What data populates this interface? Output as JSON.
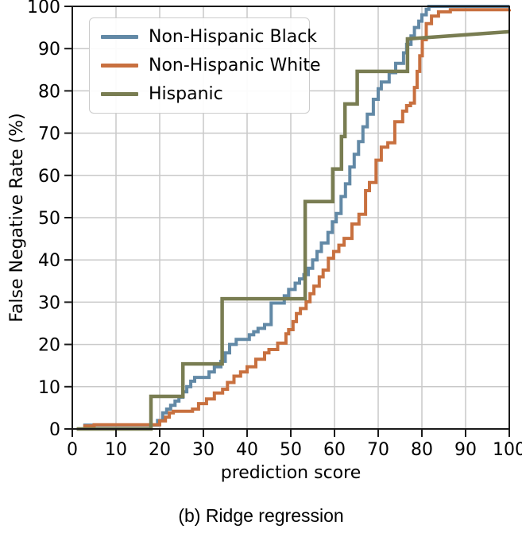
{
  "figure": {
    "caption": "(b) Ridge regression"
  },
  "colors": {
    "grid": "#c9c9c9",
    "spine": "#1a1a1a",
    "background": "#ffffff"
  },
  "chart_data": {
    "type": "line",
    "title": "",
    "xlabel": "prediction score",
    "ylabel": "False Negative Rate (%)",
    "xlim": [
      0,
      100
    ],
    "ylim": [
      0,
      100
    ],
    "xticks": [
      0,
      10,
      20,
      30,
      40,
      50,
      60,
      70,
      80,
      90,
      100
    ],
    "yticks": [
      0,
      10,
      20,
      30,
      40,
      50,
      60,
      70,
      80,
      90,
      100
    ],
    "grid": true,
    "legend_position": "upper left",
    "series": [
      {
        "name": "Non-Hispanic Black",
        "slug": "non-hispanic-black",
        "color": "#6289a6",
        "width": 4,
        "interp": "step",
        "points": [
          [
            2.5,
            0.9
          ],
          [
            19.5,
            2
          ],
          [
            20.7,
            3.8
          ],
          [
            21.6,
            4.7
          ],
          [
            22.5,
            5.6
          ],
          [
            23.5,
            6.6
          ],
          [
            24.4,
            7.5
          ],
          [
            25.3,
            8.8
          ],
          [
            26.2,
            10
          ],
          [
            27.1,
            11.3
          ],
          [
            28,
            12.2
          ],
          [
            31.3,
            13.5
          ],
          [
            32.5,
            14.7
          ],
          [
            34,
            16
          ],
          [
            35,
            18
          ],
          [
            36,
            20
          ],
          [
            37.5,
            21.2
          ],
          [
            40.5,
            22.3
          ],
          [
            41.5,
            23
          ],
          [
            42.5,
            23.8
          ],
          [
            44,
            24.7
          ],
          [
            45.5,
            29.8
          ],
          [
            48.5,
            31.5
          ],
          [
            49.5,
            33
          ],
          [
            51,
            34.5
          ],
          [
            52,
            35.5
          ],
          [
            53,
            36.5
          ],
          [
            54,
            38
          ],
          [
            55,
            40
          ],
          [
            56,
            42
          ],
          [
            57,
            44
          ],
          [
            58.5,
            46.5
          ],
          [
            59.5,
            49
          ],
          [
            60.4,
            51
          ],
          [
            61.5,
            55
          ],
          [
            62.5,
            58
          ],
          [
            63.5,
            62
          ],
          [
            64.5,
            65
          ],
          [
            65.5,
            68
          ],
          [
            66.5,
            71.5
          ],
          [
            67.5,
            74.5
          ],
          [
            68.9,
            78
          ],
          [
            70,
            80.5
          ],
          [
            70.7,
            82.1
          ],
          [
            72.5,
            84.3
          ],
          [
            74,
            86.5
          ],
          [
            75.8,
            89
          ],
          [
            76.5,
            91
          ],
          [
            77.5,
            93
          ],
          [
            78.3,
            95
          ],
          [
            79.3,
            96.5
          ],
          [
            80,
            98
          ],
          [
            81,
            99.3
          ],
          [
            81.6,
            100
          ],
          [
            100,
            100
          ]
        ]
      },
      {
        "name": "Non-Hispanic White",
        "slug": "non-hispanic-white",
        "color": "#c8703f",
        "width": 4,
        "interp": "step",
        "points": [
          [
            2.5,
            0.7
          ],
          [
            5,
            1
          ],
          [
            20,
            1.9
          ],
          [
            21.3,
            2.8
          ],
          [
            22.2,
            3.8
          ],
          [
            23.1,
            4.2
          ],
          [
            27.5,
            4.7
          ],
          [
            28.9,
            6
          ],
          [
            30.7,
            7.1
          ],
          [
            32.5,
            8.5
          ],
          [
            34.4,
            9.4
          ],
          [
            35.5,
            11
          ],
          [
            37,
            12.5
          ],
          [
            38.5,
            13.5
          ],
          [
            40,
            14.7
          ],
          [
            42,
            16.5
          ],
          [
            44,
            18
          ],
          [
            45,
            18.8
          ],
          [
            47,
            20.3
          ],
          [
            48.9,
            22.5
          ],
          [
            49.5,
            23.5
          ],
          [
            50.5,
            25.4
          ],
          [
            51.3,
            27.3
          ],
          [
            52.2,
            28.5
          ],
          [
            53.5,
            30.1
          ],
          [
            54.4,
            32
          ],
          [
            55.3,
            33.8
          ],
          [
            56.5,
            36
          ],
          [
            57.4,
            37.6
          ],
          [
            58.6,
            40.4
          ],
          [
            59.8,
            42
          ],
          [
            61,
            43.5
          ],
          [
            62.2,
            45.1
          ],
          [
            64,
            48.5
          ],
          [
            65.6,
            50.8
          ],
          [
            67.1,
            56.4
          ],
          [
            68,
            58.3
          ],
          [
            69.5,
            63.6
          ],
          [
            70.7,
            66.7
          ],
          [
            72.2,
            67.7
          ],
          [
            73.8,
            72.7
          ],
          [
            75.6,
            75.2
          ],
          [
            76.5,
            76.5
          ],
          [
            77.4,
            77.1
          ],
          [
            78.3,
            80.8
          ],
          [
            78.9,
            84.6
          ],
          [
            79.5,
            88.3
          ],
          [
            80.1,
            92.1
          ],
          [
            81,
            95.9
          ],
          [
            82.2,
            97.7
          ],
          [
            83.8,
            98.7
          ],
          [
            86.5,
            99.2
          ],
          [
            100,
            99.3
          ]
        ]
      },
      {
        "name": "Hispanic",
        "slug": "hispanic",
        "color": "#797d52",
        "width": 4.5,
        "interp": "linear",
        "points": [
          [
            1,
            0
          ],
          [
            18,
            0
          ],
          [
            18,
            7.7
          ],
          [
            25.3,
            7.7
          ],
          [
            25.3,
            15.4
          ],
          [
            34.3,
            15.4
          ],
          [
            34.3,
            30.8
          ],
          [
            53.3,
            30.8
          ],
          [
            53.3,
            53.8
          ],
          [
            59.6,
            53.8
          ],
          [
            59.6,
            61.5
          ],
          [
            61.6,
            61.5
          ],
          [
            61.6,
            69.2
          ],
          [
            62.4,
            69.2
          ],
          [
            62.4,
            76.9
          ],
          [
            65.2,
            76.9
          ],
          [
            65.2,
            84.6
          ],
          [
            76.7,
            84.6
          ],
          [
            76.7,
            92.3
          ],
          [
            100,
            94
          ]
        ]
      }
    ]
  }
}
